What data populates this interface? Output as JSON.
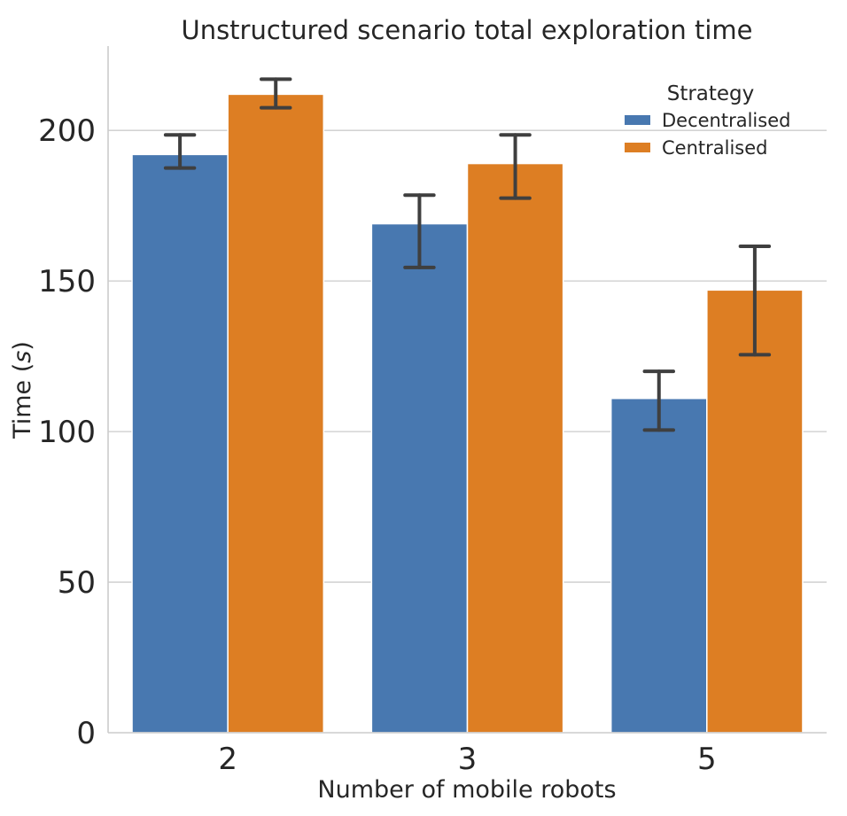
{
  "chart_data": {
    "type": "bar",
    "title": "Unstructured scenario total exploration  time",
    "xlabel": "Number of mobile robots",
    "ylabel": "Time",
    "ylabel_unit": "s",
    "categories": [
      "2",
      "3",
      "5"
    ],
    "ylim": [
      0,
      228
    ],
    "yticks": [
      0,
      50,
      100,
      150,
      200
    ],
    "grid": "horizontal",
    "legend": {
      "title": "Strategy",
      "placement": "top-right"
    },
    "series": [
      {
        "name": "Decentralised",
        "color": "#4878b0",
        "values": [
          192,
          169,
          111
        ],
        "err_low": [
          187.5,
          154.5,
          100.5
        ],
        "err_high": [
          198.5,
          178.5,
          120
        ]
      },
      {
        "name": "Centralised",
        "color": "#dd7e23",
        "values": [
          212,
          189,
          147
        ],
        "err_low": [
          207.5,
          177.5,
          125.5
        ],
        "err_high": [
          217,
          198.5,
          161.5
        ]
      }
    ]
  }
}
